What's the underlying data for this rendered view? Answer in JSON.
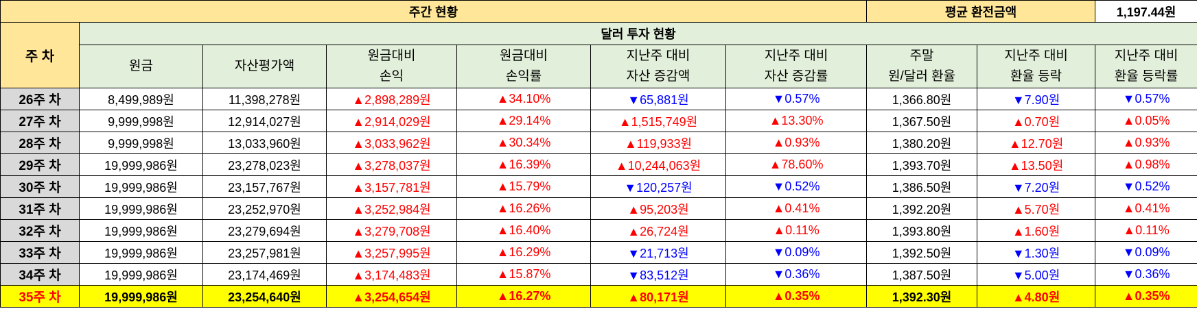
{
  "header": {
    "weekly_status": "주간 현황",
    "avg_exchange_label": "평균 환전금액",
    "avg_exchange_value": "1,197.44원",
    "week_label": "주 차",
    "section_title": "달러 투자 현황"
  },
  "columns": [
    {
      "line1": "원금",
      "line2": ""
    },
    {
      "line1": "자산평가액",
      "line2": ""
    },
    {
      "line1": "원금대비",
      "line2": "손익"
    },
    {
      "line1": "원금대비",
      "line2": "손익률"
    },
    {
      "line1": "지난주 대비",
      "line2": "자산 증감액"
    },
    {
      "line1": "지난주 대비",
      "line2": "자산 증감률"
    },
    {
      "line1": "주말",
      "line2": "원/달러 환율"
    },
    {
      "line1": "지난주 대비",
      "line2": "환율 등락"
    },
    {
      "line1": "지난주 대비",
      "line2": "환율 등락률"
    }
  ],
  "rows": [
    {
      "week": "26주 차",
      "cells": [
        {
          "t": "8,499,989원",
          "c": ""
        },
        {
          "t": "11,398,278원",
          "c": ""
        },
        {
          "t": "▲2,898,289원",
          "c": "up"
        },
        {
          "t": "▲34.10%",
          "c": "up"
        },
        {
          "t": "▼65,881원",
          "c": "down"
        },
        {
          "t": "▼0.57%",
          "c": "down"
        },
        {
          "t": "1,366.80원",
          "c": ""
        },
        {
          "t": "▼7.90원",
          "c": "down"
        },
        {
          "t": "▼0.57%",
          "c": "down"
        }
      ]
    },
    {
      "week": "27주 차",
      "cells": [
        {
          "t": "9,999,998원",
          "c": ""
        },
        {
          "t": "12,914,027원",
          "c": ""
        },
        {
          "t": "▲2,914,029원",
          "c": "up"
        },
        {
          "t": "▲29.14%",
          "c": "up"
        },
        {
          "t": "▲1,515,749원",
          "c": "up"
        },
        {
          "t": "▲13.30%",
          "c": "up"
        },
        {
          "t": "1,367.50원",
          "c": ""
        },
        {
          "t": "▲0.70원",
          "c": "up"
        },
        {
          "t": "▲0.05%",
          "c": "up"
        }
      ]
    },
    {
      "week": "28주 차",
      "cells": [
        {
          "t": "9,999,998원",
          "c": ""
        },
        {
          "t": "13,033,960원",
          "c": ""
        },
        {
          "t": "▲3,033,962원",
          "c": "up"
        },
        {
          "t": "▲30.34%",
          "c": "up"
        },
        {
          "t": "▲119,933원",
          "c": "up"
        },
        {
          "t": "▲0.93%",
          "c": "up"
        },
        {
          "t": "1,380.20원",
          "c": ""
        },
        {
          "t": "▲12.70원",
          "c": "up"
        },
        {
          "t": "▲0.93%",
          "c": "up"
        }
      ]
    },
    {
      "week": "29주 차",
      "cells": [
        {
          "t": "19,999,986원",
          "c": ""
        },
        {
          "t": "23,278,023원",
          "c": ""
        },
        {
          "t": "▲3,278,037원",
          "c": "up"
        },
        {
          "t": "▲16.39%",
          "c": "up"
        },
        {
          "t": "▲10,244,063원",
          "c": "up"
        },
        {
          "t": "▲78.60%",
          "c": "up"
        },
        {
          "t": "1,393.70원",
          "c": ""
        },
        {
          "t": "▲13.50원",
          "c": "up"
        },
        {
          "t": "▲0.98%",
          "c": "up"
        }
      ]
    },
    {
      "week": "30주 차",
      "cells": [
        {
          "t": "19,999,986원",
          "c": ""
        },
        {
          "t": "23,157,767원",
          "c": ""
        },
        {
          "t": "▲3,157,781원",
          "c": "up"
        },
        {
          "t": "▲15.79%",
          "c": "up"
        },
        {
          "t": "▼120,257원",
          "c": "down"
        },
        {
          "t": "▼0.52%",
          "c": "down"
        },
        {
          "t": "1,386.50원",
          "c": ""
        },
        {
          "t": "▼7.20원",
          "c": "down"
        },
        {
          "t": "▼0.52%",
          "c": "down"
        }
      ]
    },
    {
      "week": "31주 차",
      "cells": [
        {
          "t": "19,999,986원",
          "c": ""
        },
        {
          "t": "23,252,970원",
          "c": ""
        },
        {
          "t": "▲3,252,984원",
          "c": "up"
        },
        {
          "t": "▲16.26%",
          "c": "up"
        },
        {
          "t": "▲95,203원",
          "c": "up"
        },
        {
          "t": "▲0.41%",
          "c": "up"
        },
        {
          "t": "1,392.20원",
          "c": ""
        },
        {
          "t": "▲5.70원",
          "c": "up"
        },
        {
          "t": "▲0.41%",
          "c": "up"
        }
      ]
    },
    {
      "week": "32주 차",
      "cells": [
        {
          "t": "19,999,986원",
          "c": ""
        },
        {
          "t": "23,279,694원",
          "c": ""
        },
        {
          "t": "▲3,279,708원",
          "c": "up"
        },
        {
          "t": "▲16.40%",
          "c": "up"
        },
        {
          "t": "▲26,724원",
          "c": "up"
        },
        {
          "t": "▲0.11%",
          "c": "up"
        },
        {
          "t": "1,393.80원",
          "c": ""
        },
        {
          "t": "▲1.60원",
          "c": "up"
        },
        {
          "t": "▲0.11%",
          "c": "up"
        }
      ]
    },
    {
      "week": "33주 차",
      "cells": [
        {
          "t": "19,999,986원",
          "c": ""
        },
        {
          "t": "23,257,981원",
          "c": ""
        },
        {
          "t": "▲3,257,995원",
          "c": "up"
        },
        {
          "t": "▲16.29%",
          "c": "up"
        },
        {
          "t": "▼21,713원",
          "c": "down"
        },
        {
          "t": "▼0.09%",
          "c": "down"
        },
        {
          "t": "1,392.50원",
          "c": ""
        },
        {
          "t": "▼1.30원",
          "c": "down"
        },
        {
          "t": "▼0.09%",
          "c": "down"
        }
      ]
    },
    {
      "week": "34주 차",
      "cells": [
        {
          "t": "19,999,986원",
          "c": ""
        },
        {
          "t": "23,174,469원",
          "c": ""
        },
        {
          "t": "▲3,174,483원",
          "c": "up"
        },
        {
          "t": "▲15.87%",
          "c": "up"
        },
        {
          "t": "▼83,512원",
          "c": "down"
        },
        {
          "t": "▼0.36%",
          "c": "down"
        },
        {
          "t": "1,387.50원",
          "c": ""
        },
        {
          "t": "▼5.00원",
          "c": "down"
        },
        {
          "t": "▼0.36%",
          "c": "down"
        }
      ]
    },
    {
      "week": "35주 차",
      "current": true,
      "cells": [
        {
          "t": "19,999,986원",
          "c": ""
        },
        {
          "t": "23,254,640원",
          "c": ""
        },
        {
          "t": "▲3,254,654원",
          "c": "up"
        },
        {
          "t": "▲16.27%",
          "c": "up"
        },
        {
          "t": "▲80,171원",
          "c": "up"
        },
        {
          "t": "▲0.35%",
          "c": "up"
        },
        {
          "t": "1,392.30원",
          "c": ""
        },
        {
          "t": "▲4.80원",
          "c": "up"
        },
        {
          "t": "▲0.35%",
          "c": "up"
        }
      ]
    }
  ]
}
